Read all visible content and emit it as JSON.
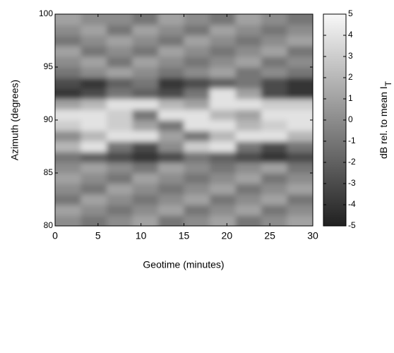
{
  "chart_data": {
    "type": "heatmap",
    "xlabel": "Geotime (minutes)",
    "ylabel": "Azimuth (degrees)",
    "xbins": [
      0,
      3,
      6,
      9,
      12,
      15,
      18,
      21,
      24,
      27,
      30
    ],
    "ybins": [
      80,
      81,
      82,
      83,
      84,
      85,
      86,
      87,
      88,
      89,
      90,
      91,
      92,
      93,
      94,
      95,
      96,
      97,
      98,
      99,
      100
    ],
    "z": [
      [
        0,
        -1,
        0,
        1,
        -1,
        0,
        1,
        -1,
        0,
        1
      ],
      [
        1,
        0,
        -1,
        0,
        1,
        -1,
        0,
        1,
        -1,
        0
      ],
      [
        -1,
        1,
        0,
        -1,
        0,
        1,
        -1,
        0,
        1,
        -1
      ],
      [
        0,
        -1,
        1,
        0,
        -1,
        0,
        1,
        -1,
        0,
        1
      ],
      [
        1,
        0,
        -1,
        1,
        0,
        -1,
        0,
        1,
        -1,
        0
      ],
      [
        0,
        1,
        0,
        -1,
        1,
        0,
        -1,
        0,
        1,
        -1
      ],
      [
        -1,
        -2,
        -3,
        -4,
        -3,
        -1,
        -2,
        -3,
        -4,
        -3
      ],
      [
        2,
        4,
        -1,
        -3,
        0,
        3,
        4,
        -1,
        -3,
        -1
      ],
      [
        0,
        2,
        4,
        4,
        1,
        -1,
        2,
        4,
        4,
        2
      ],
      [
        3,
        4,
        3,
        1,
        -1,
        4,
        4,
        2,
        3,
        4
      ],
      [
        4,
        4,
        3,
        -1,
        4,
        4,
        2,
        1,
        4,
        4
      ],
      [
        1,
        2,
        4,
        4,
        2,
        1,
        4,
        4,
        3,
        3
      ],
      [
        -4,
        -3,
        -1,
        -2,
        -3,
        -1,
        4,
        1,
        -3,
        -4
      ],
      [
        -3,
        -4,
        -2,
        -1,
        -4,
        -3,
        -2,
        -1,
        -3,
        -4
      ],
      [
        -1,
        0,
        1,
        0,
        -1,
        0,
        1,
        -1,
        0,
        -1
      ],
      [
        0,
        1,
        -1,
        1,
        0,
        -1,
        0,
        1,
        -1,
        0
      ],
      [
        1,
        -1,
        0,
        -1,
        1,
        0,
        -1,
        0,
        1,
        -1
      ],
      [
        -1,
        0,
        1,
        0,
        -1,
        1,
        0,
        -1,
        0,
        1
      ],
      [
        0,
        1,
        -1,
        1,
        0,
        -1,
        1,
        0,
        -1,
        0
      ],
      [
        1,
        0,
        0,
        -1,
        1,
        0,
        -1,
        1,
        0,
        -1
      ]
    ],
    "colormap": "gray",
    "xlim": [
      0,
      30
    ],
    "xticks": [
      0,
      5,
      10,
      15,
      20,
      25,
      30
    ],
    "ylim": [
      80,
      100
    ],
    "yticks": [
      80,
      85,
      90,
      95,
      100
    ],
    "zlim": [
      -5,
      5
    ],
    "zticks": [
      -5,
      -4,
      -3,
      -2,
      -1,
      0,
      1,
      2,
      3,
      4,
      5
    ],
    "colorbar_label": "dB rel. to mean I",
    "colorbar_label_subscript": "T"
  }
}
